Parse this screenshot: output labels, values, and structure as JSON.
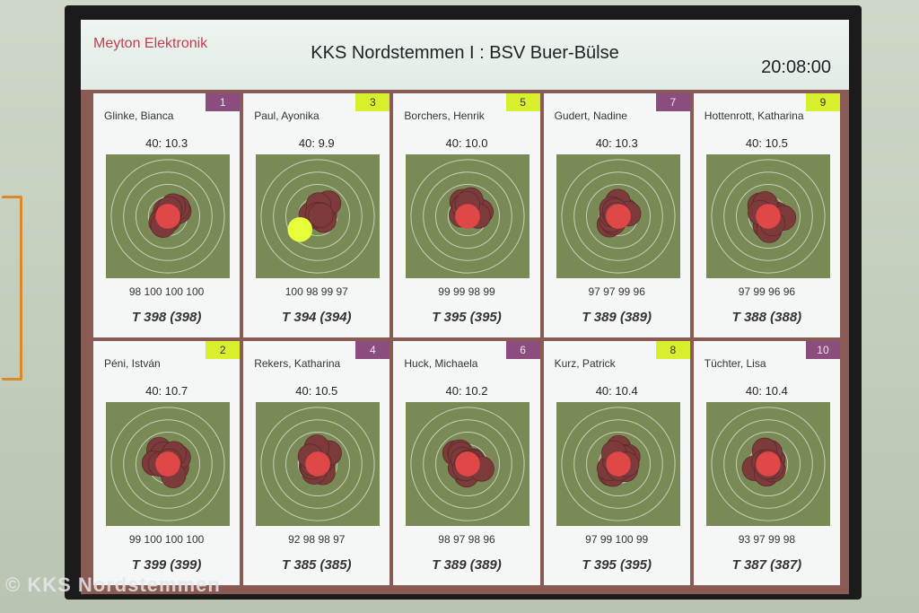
{
  "header": {
    "brand": "Meyton Elektronik",
    "title": "KKS Nordstemmen I : BSV Buer-Bülse",
    "clock": "20:08:00"
  },
  "colors": {
    "badge_purple": "#8a4d7e",
    "badge_yellow": "#d8ef2d",
    "target_bg": "#7a8a56",
    "shot": "#7d3a3a",
    "last_shot_red": "#e04848",
    "last_shot_yellow": "#e6ff3a"
  },
  "shooters": [
    {
      "name": "Glinke, Bianca",
      "number": "1",
      "badge": "purple",
      "shots": "40:",
      "avg": "10.3",
      "series": "98 100 100 100",
      "total": "T 398 (398)",
      "last": "red"
    },
    {
      "name": "Paul, Ayonika",
      "number": "3",
      "badge": "yellow",
      "shots": "40:",
      "avg": "9.9",
      "series": "100 98 99 97",
      "total": "T 394 (394)",
      "last": "yellow"
    },
    {
      "name": "Borchers, Henrik",
      "number": "5",
      "badge": "yellow",
      "shots": "40:",
      "avg": "10.0",
      "series": "99 99 98 99",
      "total": "T 395 (395)",
      "last": "red"
    },
    {
      "name": "Gudert, Nadine",
      "number": "7",
      "badge": "purple",
      "shots": "40:",
      "avg": "10.3",
      "series": "97 97 99 96",
      "total": "T 389 (389)",
      "last": "red"
    },
    {
      "name": "Hottenrott, Katharina",
      "number": "9",
      "badge": "yellow",
      "shots": "40:",
      "avg": "10.5",
      "series": "97 99 96 96",
      "total": "T 388 (388)",
      "last": "red"
    },
    {
      "name": "Péni, István",
      "number": "2",
      "badge": "yellow",
      "shots": "40:",
      "avg": "10.7",
      "series": "99 100 100 100",
      "total": "T 399 (399)",
      "last": "red"
    },
    {
      "name": "Rekers, Katharina",
      "number": "4",
      "badge": "purple",
      "shots": "40:",
      "avg": "10.5",
      "series": "92 98 98 97",
      "total": "T 385 (385)",
      "last": "red"
    },
    {
      "name": "Huck, Michaela",
      "number": "6",
      "badge": "purple",
      "shots": "40:",
      "avg": "10.2",
      "series": "98 97 98 96",
      "total": "T 389 (389)",
      "last": "red"
    },
    {
      "name": "Kurz, Patrick",
      "number": "8",
      "badge": "yellow",
      "shots": "40:",
      "avg": "10.4",
      "series": "97 99 100 99",
      "total": "T 395 (395)",
      "last": "red"
    },
    {
      "name": "Tüchter, Lisa",
      "number": "10",
      "badge": "purple",
      "shots": "40:",
      "avg": "10.4",
      "series": "93 97 99 98",
      "total": "T 387 (387)",
      "last": "red"
    }
  ],
  "watermark": "© KKS Nordstemmen"
}
